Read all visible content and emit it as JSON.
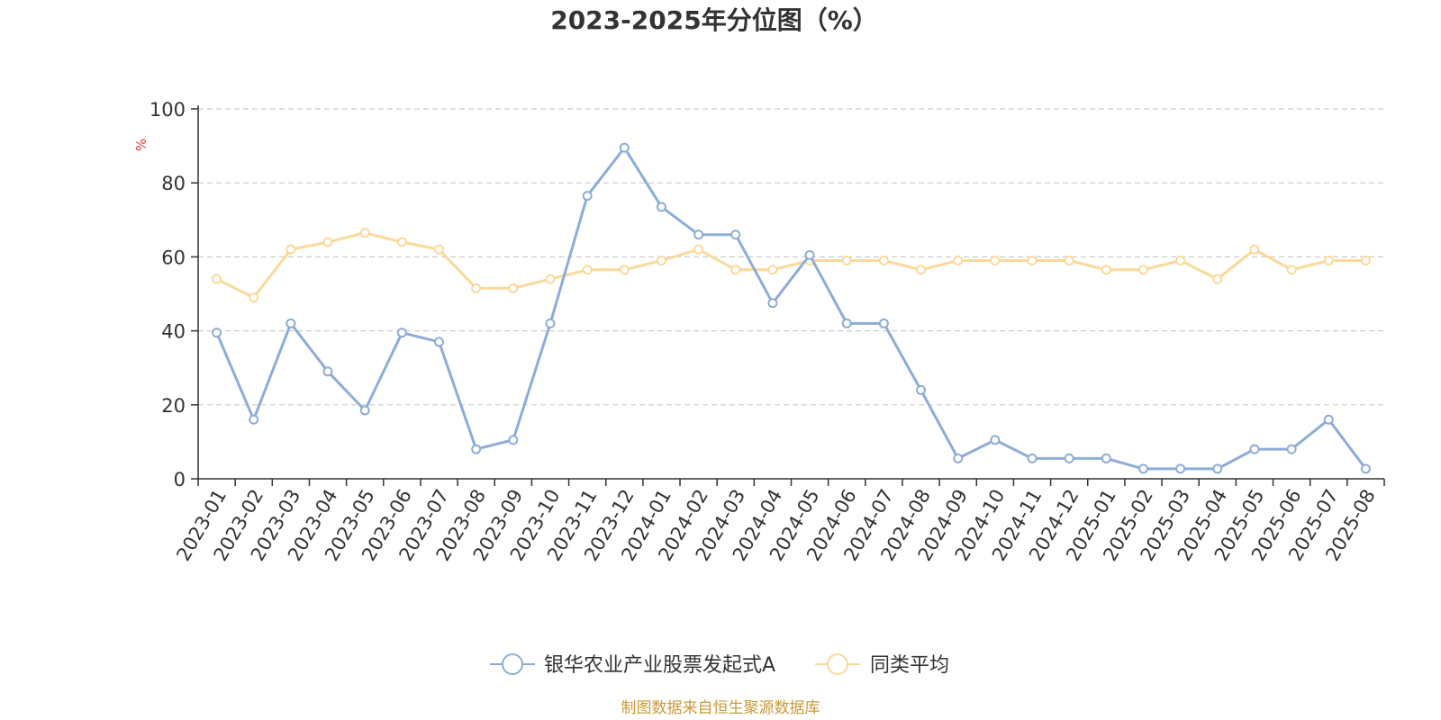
{
  "chart_data": {
    "type": "line",
    "title": "2023-2025年分位图（%）",
    "ylabel": "%",
    "ylim": [
      0,
      100
    ],
    "yticks": [
      0,
      20,
      40,
      60,
      80,
      100
    ],
    "grid": true,
    "legend_position": "bottom",
    "categories": [
      "2023-01",
      "2023-02",
      "2023-03",
      "2023-04",
      "2023-05",
      "2023-06",
      "2023-07",
      "2023-08",
      "2023-09",
      "2023-10",
      "2023-11",
      "2023-12",
      "2024-01",
      "2024-02",
      "2024-03",
      "2024-04",
      "2024-05",
      "2024-06",
      "2024-07",
      "2024-08",
      "2024-09",
      "2024-10",
      "2024-11",
      "2024-12",
      "2025-01",
      "2025-02",
      "2025-03",
      "2025-04",
      "2025-05",
      "2025-06",
      "2025-07",
      "2025-08"
    ],
    "series": [
      {
        "name": "银华农业产业股票发起式A",
        "color": "#8eacd8",
        "values": [
          39.5,
          16.0,
          42.0,
          29.0,
          18.5,
          39.5,
          37.0,
          8.0,
          10.5,
          42.0,
          76.5,
          89.5,
          73.5,
          66.0,
          66.0,
          47.5,
          60.5,
          42.0,
          42.0,
          24.0,
          5.5,
          10.5,
          5.5,
          5.5,
          5.5,
          2.7,
          2.7,
          2.7,
          8.0,
          8.0,
          16.0,
          2.7
        ]
      },
      {
        "name": "同类平均",
        "color": "#fbd99a",
        "values": [
          54.0,
          49.0,
          62.0,
          64.0,
          66.5,
          64.0,
          62.0,
          51.5,
          51.5,
          54.0,
          56.5,
          56.5,
          59.0,
          62.0,
          56.5,
          56.5,
          59.0,
          59.0,
          59.0,
          56.5,
          59.0,
          59.0,
          59.0,
          59.0,
          56.5,
          56.5,
          59.0,
          54.0,
          62.0,
          56.5,
          59.0,
          59.0
        ]
      }
    ],
    "source": "制图数据来自恒生聚源数据库",
    "colors": {
      "axis": "#333333",
      "grid": "#cccccc",
      "unit": "#e03030",
      "source": "#c99a3a"
    }
  }
}
